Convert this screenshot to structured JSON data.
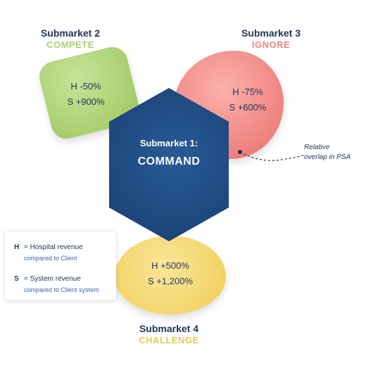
{
  "submarkets": {
    "sm1": {
      "label": "Submarket 1:",
      "strategy": "COMMAND",
      "color": "#1f4b82"
    },
    "sm2": {
      "label": "Submarket 2",
      "strategy": "COMPETE",
      "strategy_color": "#a9d06f",
      "h": "H -50%",
      "s": "S +900%"
    },
    "sm3": {
      "label": "Submarket 3",
      "strategy": "IGNORE",
      "strategy_color": "#ef8580",
      "h": "H -75%",
      "s": "S +600%"
    },
    "sm4": {
      "label": "Submarket 4",
      "strategy": "CHALLENGE",
      "strategy_color": "#e8c95a",
      "h": "H +500%",
      "s": "S +1,200%"
    }
  },
  "legend": {
    "h_key": "H",
    "h_text": "= Hospital revenue",
    "h_sub": "compared to Client",
    "s_key": "S",
    "s_text": "= System revenue",
    "s_sub": "compared to Client system"
  },
  "annotation": {
    "line1": "Relative",
    "line2": "overlap in PSA"
  }
}
